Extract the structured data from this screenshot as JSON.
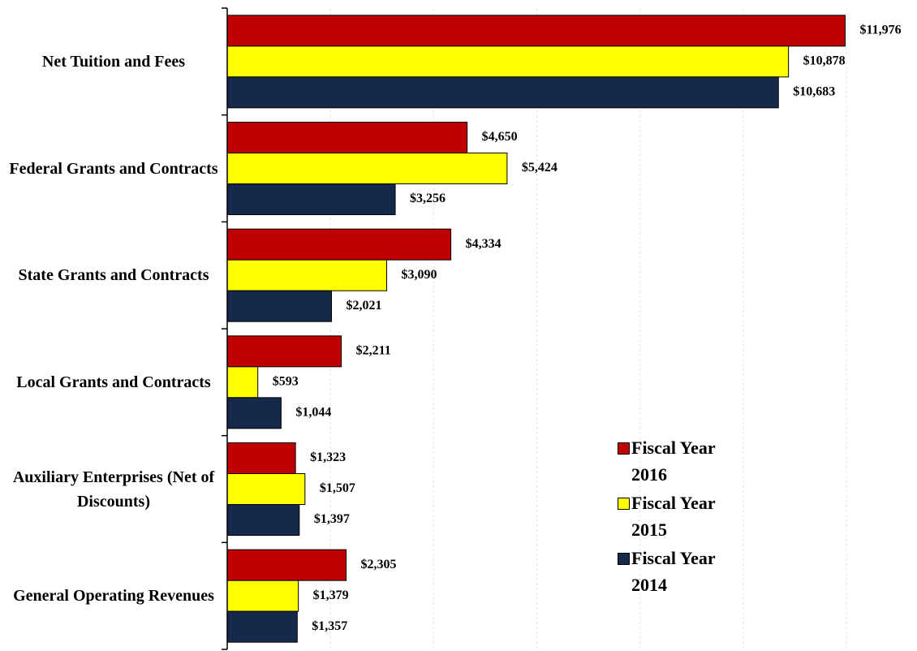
{
  "chart_data": {
    "type": "hbar",
    "categories": [
      "Net Tuition and Fees",
      "Federal Grants and Contracts",
      "State Grants and Contracts",
      "Local Grants and Contracts",
      "Auxiliary Enterprises (Net of Discounts)",
      "General Operating Revenues"
    ],
    "series": [
      {
        "name": "Fiscal Year 2016",
        "color": "#c00000",
        "values": [
          11976,
          4650,
          4334,
          2211,
          1323,
          2305
        ],
        "value_labels": [
          "$11,976",
          "$4,650",
          "$4,334",
          "$2,211",
          "$1,323",
          "$2,305"
        ]
      },
      {
        "name": "Fiscal Year 2015",
        "color": "#ffff00",
        "values": [
          10878,
          5424,
          3090,
          593,
          1507,
          1379
        ],
        "value_labels": [
          "$10,878",
          "$5,424",
          "$3,090",
          "$593",
          "$1,507",
          "$1,379"
        ]
      },
      {
        "name": "Fiscal Year 2014",
        "color": "#17294a",
        "values": [
          10683,
          3256,
          2021,
          1044,
          1397,
          1357
        ],
        "value_labels": [
          "$10,683",
          "$3,256",
          "$2,021",
          "$1,044",
          "$1,397",
          "$1,357"
        ]
      }
    ],
    "xlim": [
      0,
      12000
    ],
    "xticks": [
      2000,
      4000,
      6000,
      8000,
      10000,
      12000
    ],
    "grid": true,
    "legend": "lower right"
  }
}
